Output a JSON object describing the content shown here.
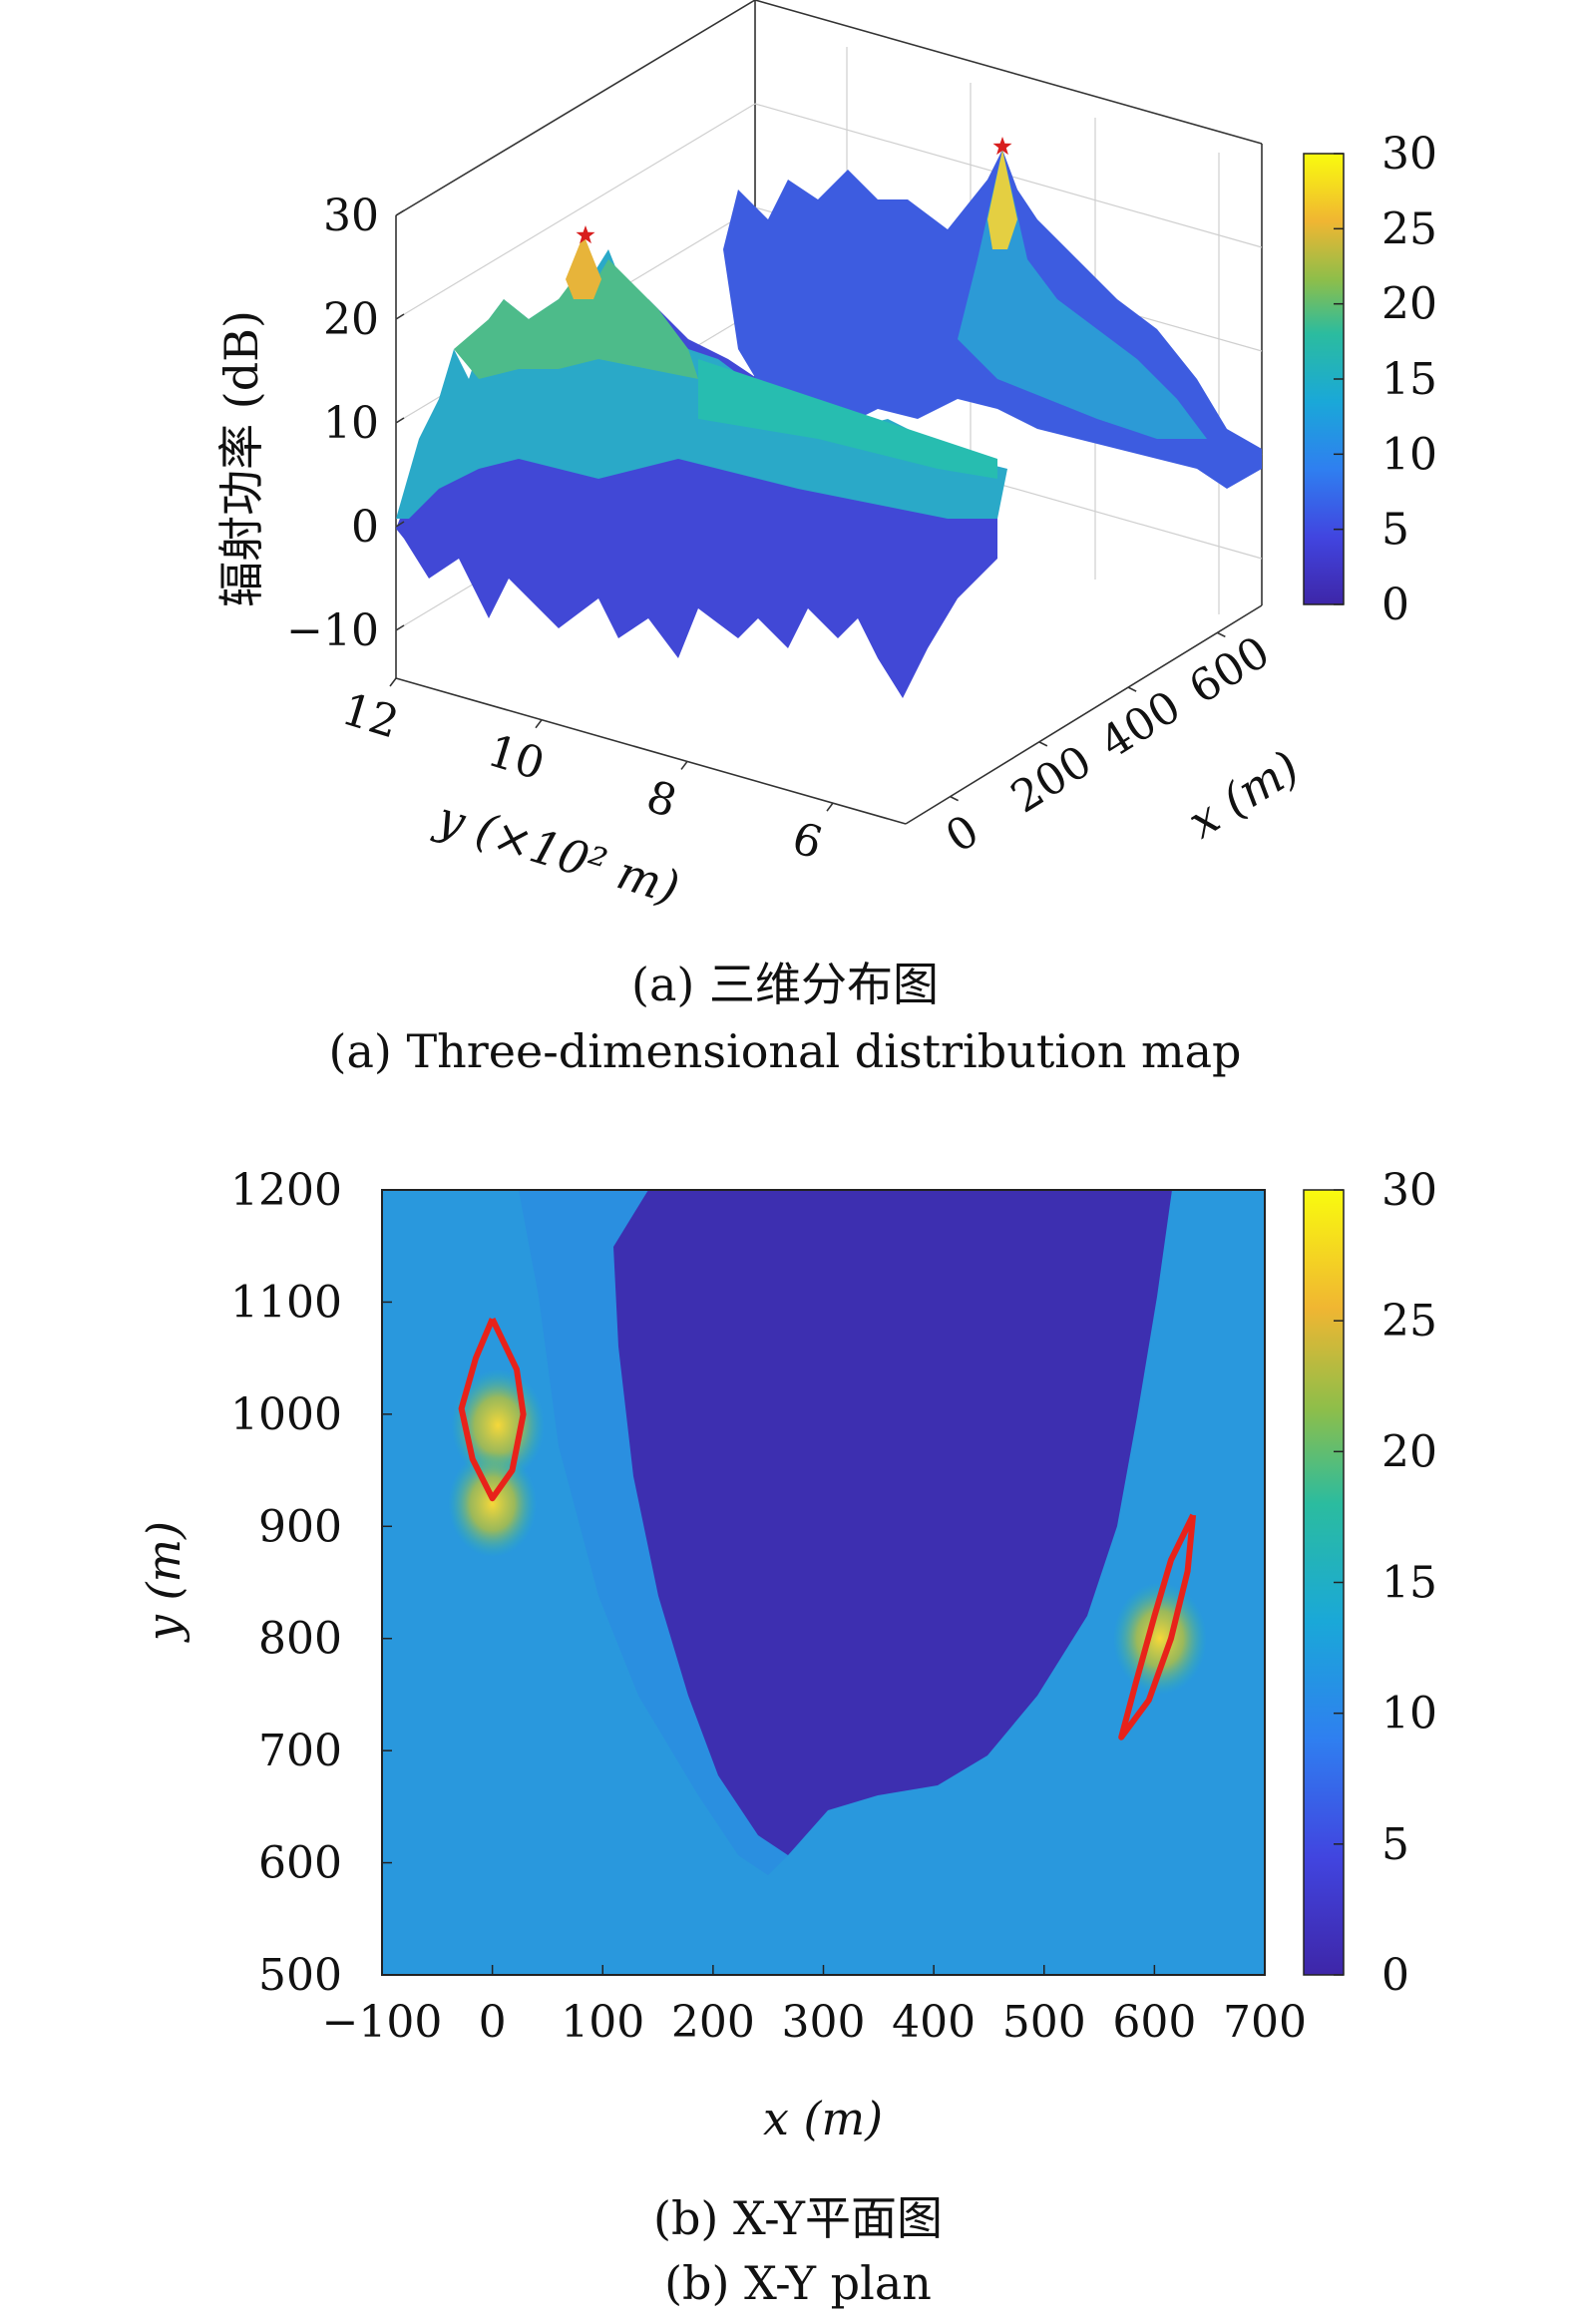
{
  "figure": {
    "caption_a_cn": "(a) 三维分布图",
    "caption_a_en": "(a) Three-dimensional distribution map",
    "caption_b_cn": "(b) X-Y平面图",
    "caption_b_en": "(b) X-Y plan"
  },
  "chart_data": [
    {
      "type": "surface3d",
      "zlabel": "辐射功率 (dB)",
      "ylabel": "y (×10² m)",
      "xlabel": "x (m)",
      "z_ticks": [
        "30",
        "20",
        "10",
        "0",
        "−10"
      ],
      "z_tick_values": [
        30,
        20,
        10,
        0,
        -10
      ],
      "y_ticks": [
        "12",
        "10",
        "8",
        "6"
      ],
      "y_tick_values": [
        12,
        10,
        8,
        6
      ],
      "x_ticks": [
        "0",
        "200",
        "400",
        "600"
      ],
      "x_tick_values": [
        0,
        200,
        400,
        600
      ],
      "zlim": [
        -10,
        30
      ],
      "xlim": [
        -100,
        700
      ],
      "ylim": [
        5,
        12
      ],
      "grid": true,
      "colormap": "parula",
      "colorbar": {
        "ticks": [
          "30",
          "25",
          "20",
          "15",
          "10",
          "5",
          "0"
        ],
        "values": [
          30,
          25,
          20,
          15,
          10,
          5,
          0
        ],
        "range": [
          0,
          30
        ]
      },
      "peaks": [
        {
          "x": 0,
          "y": 10,
          "z": 27
        },
        {
          "x": 600,
          "y": 8,
          "z": 30
        }
      ],
      "peak_marker_color": "#d81e1e"
    },
    {
      "type": "heatmap",
      "xlabel": "x (m)",
      "ylabel": "y (m)",
      "x_ticks": [
        "−100",
        "0",
        "100",
        "200",
        "300",
        "400",
        "500",
        "600",
        "700"
      ],
      "x_tick_values": [
        -100,
        0,
        100,
        200,
        300,
        400,
        500,
        600,
        700
      ],
      "y_ticks": [
        "1200",
        "1100",
        "1000",
        "900",
        "800",
        "700",
        "600",
        "500"
      ],
      "y_tick_values": [
        1200,
        1100,
        1000,
        900,
        800,
        700,
        600,
        500
      ],
      "xlim": [
        -100,
        700
      ],
      "ylim": [
        500,
        1200
      ],
      "colormap": "parula",
      "colorbar": {
        "ticks": [
          "30",
          "25",
          "20",
          "15",
          "10",
          "5",
          "0"
        ],
        "values": [
          30,
          25,
          20,
          15,
          10,
          5,
          0
        ],
        "range": [
          0,
          30
        ]
      },
      "hotspots": [
        {
          "x": 5,
          "y": 990,
          "value": 24
        },
        {
          "x": 0,
          "y": 920,
          "value": 22
        },
        {
          "x": 605,
          "y": 800,
          "value": 24
        }
      ],
      "contours": [
        {
          "color": "#e8221a",
          "points": [
            [
              0,
              1085
            ],
            [
              22,
              1040
            ],
            [
              28,
              1000
            ],
            [
              18,
              950
            ],
            [
              0,
              925
            ],
            [
              -18,
              960
            ],
            [
              -28,
              1005
            ],
            [
              -15,
              1050
            ],
            [
              0,
              1085
            ]
          ]
        },
        {
          "color": "#e8221a",
          "points": [
            [
              635,
              910
            ],
            [
              630,
              860
            ],
            [
              615,
              800
            ],
            [
              595,
              745
            ],
            [
              570,
              712
            ],
            [
              583,
              760
            ],
            [
              600,
              820
            ],
            [
              615,
              870
            ],
            [
              635,
              910
            ]
          ]
        }
      ]
    }
  ]
}
